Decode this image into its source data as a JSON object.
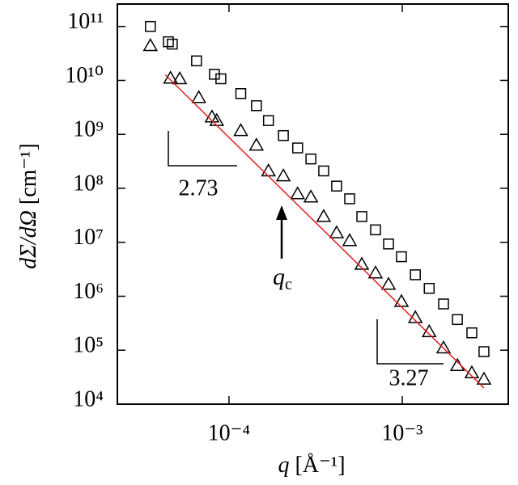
{
  "chart_data": {
    "type": "scatter",
    "xlabel": "q",
    "xlabel_unit": "[Å⁻¹]",
    "ylabel": "dΣ/dΩ",
    "ylabel_unit": "[cm⁻¹]",
    "xscale": "log",
    "yscale": "log",
    "xlim": [
      2.27e-05,
      0.00409
    ],
    "ylim": [
      10000.0,
      260000000000.0
    ],
    "xticks": [
      {
        "value": 0.0001,
        "label": "10⁻⁴"
      },
      {
        "value": 0.001,
        "label": "10⁻³"
      }
    ],
    "yticks": [
      {
        "value": 10000.0,
        "label": "10⁴"
      },
      {
        "value": 100000.0,
        "label": "10⁵"
      },
      {
        "value": 1000000.0,
        "label": "10⁶"
      },
      {
        "value": 10000000.0,
        "label": "10⁷"
      },
      {
        "value": 100000000.0,
        "label": "10⁸"
      },
      {
        "value": 1000000000.0,
        "label": "10⁹"
      },
      {
        "value": 10000000000.0,
        "label": "10¹⁰"
      },
      {
        "value": 100000000000.0,
        "label": "10¹¹"
      }
    ],
    "series": [
      {
        "marker": "square",
        "color": "#000000",
        "x": [
          3.52e-05,
          4.47e-05,
          4.71e-05,
          6.5e-05,
          8.24e-05,
          8.98e-05,
          0.000117,
          0.000144,
          0.000169,
          0.000206,
          0.000249,
          0.000297,
          0.000352,
          0.000418,
          0.000497,
          0.000584,
          0.000701,
          0.000833,
          0.000989,
          0.00119,
          0.00143,
          0.00173,
          0.00208,
          0.00252,
          0.00296
        ],
        "values": [
          100000000000.0,
          52000000000.0,
          47000000000.0,
          23000000000.0,
          13000000000.0,
          10700000000.0,
          5700000000.0,
          3400000000.0,
          1800000000.0,
          950000000.0,
          560000000.0,
          350000000.0,
          210000000.0,
          110000000.0,
          64000000.0,
          30000000.0,
          17000000.0,
          9300000.0,
          5400000.0,
          2500000.0,
          1400000.0,
          720000.0,
          370000.0,
          210000.0,
          94000.0
        ]
      },
      {
        "marker": "triangle",
        "color": "#000000",
        "x": [
          3.52e-05,
          4.6e-05,
          5.2e-05,
          6.7e-05,
          7.98e-05,
          8.5e-05,
          0.000117,
          0.000144,
          0.000169,
          0.000206,
          0.000249,
          0.000297,
          0.000352,
          0.000418,
          0.000497,
          0.000584,
          0.000701,
          0.000833,
          0.000989,
          0.00119,
          0.00143,
          0.00173,
          0.00208,
          0.00252,
          0.00296
        ],
        "values": [
          44000000000.0,
          11000000000.0,
          10700000000.0,
          4800000000.0,
          2100000000.0,
          1800000000.0,
          1170000000.0,
          630000000.0,
          210000000.0,
          170000000.0,
          79000000.0,
          69000000.0,
          30000000.0,
          15000000.0,
          10700000.0,
          3900000.0,
          2700000.0,
          1660000.0,
          800000.0,
          400000.0,
          220000.0,
          110000.0,
          52000.0,
          38000.0,
          29000.0
        ]
      },
      {
        "marker": "line",
        "color": "#e02020",
        "x": [
          4.3e-05,
          0.00296
        ],
        "values": [
          12600000000.0,
          20000.0
        ]
      }
    ],
    "annotations": [
      {
        "text": "2.73"
      },
      {
        "text": "3.27"
      },
      {
        "text": "q",
        "sub": "c"
      }
    ]
  }
}
